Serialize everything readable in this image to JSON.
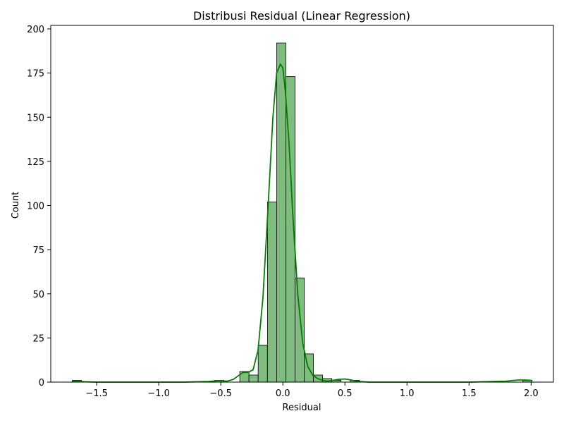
{
  "chart_data": {
    "type": "bar",
    "title": "Distribusi Residual (Linear Regression)",
    "xlabel": "Residual",
    "ylabel": "Count",
    "xlim": [
      -1.87,
      2.18
    ],
    "ylim": [
      0,
      202
    ],
    "xticks": [
      -1.5,
      -1.0,
      -0.5,
      0.0,
      0.5,
      1.0,
      1.5,
      2.0
    ],
    "xtick_labels": [
      "−1.5",
      "−1.0",
      "−0.5",
      "0.0",
      "0.5",
      "1.0",
      "1.5",
      "2.0"
    ],
    "yticks": [
      0,
      25,
      50,
      75,
      100,
      125,
      150,
      175,
      200
    ],
    "ytick_labels": [
      "0",
      "25",
      "50",
      "75",
      "100",
      "125",
      "150",
      "175",
      "200"
    ],
    "bin_width": 0.0742,
    "bins": [
      {
        "x0": -1.697,
        "count": 1
      },
      {
        "x0": -0.549,
        "count": 1
      },
      {
        "x0": -0.347,
        "count": 6
      },
      {
        "x0": -0.273,
        "count": 4
      },
      {
        "x0": -0.199,
        "count": 21
      },
      {
        "x0": -0.124,
        "count": 102
      },
      {
        "x0": -0.05,
        "count": 192
      },
      {
        "x0": 0.024,
        "count": 173
      },
      {
        "x0": 0.098,
        "count": 59
      },
      {
        "x0": 0.172,
        "count": 16
      },
      {
        "x0": 0.246,
        "count": 4
      },
      {
        "x0": 0.32,
        "count": 2
      },
      {
        "x0": 0.394,
        "count": 1
      },
      {
        "x0": 0.543,
        "count": 1
      },
      {
        "x0": 1.934,
        "count": 1
      }
    ],
    "kde": {
      "x": [
        -1.7,
        -1.6,
        -1.5,
        -1.2,
        -1.0,
        -0.8,
        -0.6,
        -0.52,
        -0.45,
        -0.4,
        -0.36,
        -0.32,
        -0.28,
        -0.24,
        -0.2,
        -0.16,
        -0.12,
        -0.08,
        -0.05,
        -0.02,
        0.0,
        0.02,
        0.05,
        0.08,
        0.12,
        0.16,
        0.2,
        0.24,
        0.28,
        0.32,
        0.36,
        0.4,
        0.45,
        0.5,
        0.55,
        0.6,
        0.7,
        1.0,
        1.5,
        1.8,
        1.9,
        1.96,
        2.0
      ],
      "y": [
        0.5,
        0.2,
        0.0,
        0.0,
        0.0,
        0.0,
        0.3,
        0.8,
        0.5,
        1.5,
        3.5,
        5.5,
        5.5,
        7,
        18,
        48,
        98,
        150,
        175,
        180,
        178,
        165,
        135,
        95,
        50,
        22,
        9,
        4,
        2,
        1,
        0.5,
        1.0,
        1.5,
        1.8,
        1.2,
        0.4,
        0.0,
        0.0,
        0.0,
        0.5,
        1.2,
        1.2,
        1.0
      ]
    },
    "colors": {
      "bar_fill": "#80bb80",
      "bar_edge": "#000000",
      "kde_line": "#008000"
    },
    "grid": false,
    "legend": "none"
  }
}
